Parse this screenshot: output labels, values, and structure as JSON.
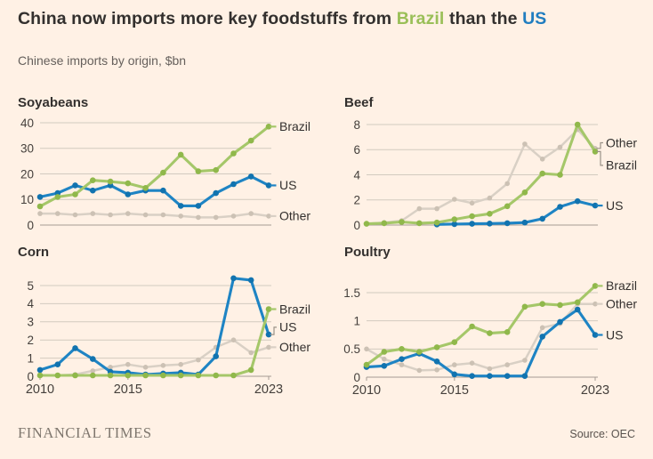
{
  "header": {
    "title_parts": [
      {
        "text": "China now imports more key foodstuffs from "
      },
      {
        "text": "Brazil",
        "color": "brazil"
      },
      {
        "text": " than the "
      },
      {
        "text": "US",
        "color": "us"
      }
    ],
    "subtitle": "Chinese imports by origin, $bn"
  },
  "colors": {
    "background": "#fff1e5",
    "text": "#33302e",
    "subtitle_text": "#66605c",
    "tick_text": "#45403c",
    "grid": "#d2cabf",
    "axis": "#a49c93",
    "leader": "#9a9288",
    "brazil": "#9abf58",
    "us": "#207dc0",
    "brazil_line": "#a5c769",
    "brazil_dot": "#90b84b",
    "us_line": "#1e84c4",
    "us_dot": "#1173af",
    "other_line": "#d9d0c5",
    "other_dot": "#ccc1b4"
  },
  "x_axis": {
    "ticks": [
      {
        "label": "2010",
        "index": 0
      },
      {
        "label": "2015",
        "index": 5
      },
      {
        "label": "2023",
        "index": 13
      }
    ]
  },
  "chart_data": [
    {
      "type": "line",
      "title": "Soyabeans",
      "x": [
        2010,
        2011,
        2012,
        2013,
        2014,
        2015,
        2016,
        2017,
        2018,
        2019,
        2020,
        2021,
        2022,
        2023
      ],
      "ylim": [
        0,
        40
      ],
      "yticks": [
        0,
        10,
        20,
        30,
        40
      ],
      "series": [
        {
          "name": "Other",
          "key": "other",
          "values": [
            4.5,
            4.5,
            4,
            4.5,
            4,
            4.5,
            4,
            4,
            3.5,
            3,
            3,
            3.5,
            4.5,
            3.5
          ]
        },
        {
          "name": "US",
          "key": "us",
          "values": [
            11,
            12.5,
            15.5,
            13.5,
            15.5,
            12,
            13.5,
            13.5,
            7.5,
            7.5,
            12.5,
            16,
            19,
            15.5
          ]
        },
        {
          "name": "Brazil",
          "key": "brazil",
          "values": [
            7.3,
            11,
            12,
            17.5,
            17,
            16.3,
            14.5,
            20.5,
            27.5,
            21,
            21.5,
            28,
            33,
            38.5
          ]
        }
      ]
    },
    {
      "type": "line",
      "title": "Beef",
      "x": [
        2010,
        2011,
        2012,
        2013,
        2014,
        2015,
        2016,
        2017,
        2018,
        2019,
        2020,
        2021,
        2022,
        2023
      ],
      "ylim": [
        0,
        8
      ],
      "yticks": [
        0,
        2,
        4,
        6,
        8
      ],
      "series": [
        {
          "name": "Other",
          "key": "other",
          "label_value": 6.55,
          "leader": "elbow",
          "values": [
            0.1,
            0.2,
            0.35,
            1.3,
            1.3,
            2.05,
            1.75,
            2.15,
            3.3,
            6.45,
            5.25,
            6.2,
            7.6,
            6.1
          ]
        },
        {
          "name": "US",
          "key": "us",
          "values": [
            null,
            null,
            null,
            null,
            0.05,
            0.08,
            0.1,
            0.12,
            0.15,
            0.2,
            0.5,
            1.45,
            1.9,
            1.55
          ]
        },
        {
          "name": "Brazil",
          "key": "brazil",
          "label_value": 4.75,
          "leader": "elbow",
          "values": [
            0.1,
            0.15,
            0.25,
            0.15,
            0.2,
            0.45,
            0.7,
            0.9,
            1.5,
            2.6,
            4.1,
            4,
            8,
            5.85
          ]
        }
      ]
    },
    {
      "type": "line",
      "title": "Corn",
      "x": [
        2010,
        2011,
        2012,
        2013,
        2014,
        2015,
        2016,
        2017,
        2018,
        2019,
        2020,
        2021,
        2022,
        2023
      ],
      "ylim": [
        0,
        5
      ],
      "yticks": [
        0,
        1,
        2,
        3,
        4,
        5
      ],
      "series": [
        {
          "name": "Other",
          "key": "other",
          "values": [
            0.05,
            0.05,
            0.1,
            0.3,
            0.5,
            0.65,
            0.5,
            0.6,
            0.65,
            0.9,
            1.6,
            2,
            1.3,
            1.6
          ]
        },
        {
          "name": "US",
          "key": "us",
          "label_value": 2.7,
          "leader": "elbow",
          "values": [
            0.35,
            0.65,
            1.55,
            0.95,
            0.25,
            0.2,
            0.1,
            0.15,
            0.2,
            0.1,
            1.1,
            5.4,
            5.3,
            2.3
          ]
        },
        {
          "name": "Brazil",
          "key": "brazil",
          "values": [
            0.05,
            0.05,
            0.05,
            0.05,
            0.05,
            0.05,
            0.05,
            0.05,
            0.05,
            0.05,
            0.05,
            0.05,
            0.35,
            3.7
          ]
        }
      ]
    },
    {
      "type": "line",
      "title": "Poultry",
      "x": [
        2010,
        2011,
        2012,
        2013,
        2014,
        2015,
        2016,
        2017,
        2018,
        2019,
        2020,
        2021,
        2022,
        2023
      ],
      "ylim": [
        0,
        1.5
      ],
      "yticks": [
        0,
        0.5,
        1,
        1.5
      ],
      "series": [
        {
          "name": "Other",
          "key": "other",
          "values": [
            0.5,
            0.32,
            0.22,
            0.12,
            0.13,
            0.22,
            0.25,
            0.15,
            0.22,
            0.3,
            0.88,
            0.95,
            1.3,
            1.3
          ]
        },
        {
          "name": "US",
          "key": "us",
          "values": [
            0.18,
            0.2,
            0.32,
            0.42,
            0.28,
            0.05,
            0.02,
            0.02,
            0.02,
            0.02,
            0.72,
            0.98,
            1.2,
            0.75
          ]
        },
        {
          "name": "Brazil",
          "key": "brazil",
          "values": [
            0.22,
            0.45,
            0.5,
            0.45,
            0.53,
            0.62,
            0.9,
            0.78,
            0.8,
            1.25,
            1.3,
            1.28,
            1.33,
            1.62
          ]
        }
      ]
    }
  ],
  "footer": {
    "brand": "FINANCIAL TIMES",
    "source": "Source: OEC"
  }
}
